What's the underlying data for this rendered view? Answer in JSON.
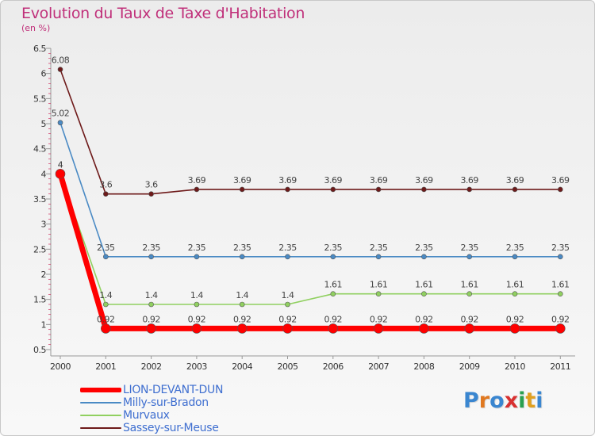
{
  "chart_data": {
    "type": "line",
    "title": "Evolution du Taux de Taxe d'Habitation",
    "subtitle": "(en %)",
    "x": [
      "2000",
      "2001",
      "2002",
      "2003",
      "2004",
      "2005",
      "2006",
      "2007",
      "2008",
      "2009",
      "2010",
      "2011"
    ],
    "yticks": [
      "0.5",
      "1",
      "1.5",
      "2",
      "2.5",
      "3",
      "3.5",
      "4",
      "4.5",
      "5",
      "5.5",
      "6",
      "6.5"
    ],
    "ylim": [
      0.5,
      6.5
    ],
    "grid": false,
    "legend_position": "bottom-left",
    "series": [
      {
        "name": "Sassey-sur-Meuse",
        "color": "#6e1a1a",
        "values": [
          6.08,
          3.6,
          3.6,
          3.69,
          3.69,
          3.69,
          3.69,
          3.69,
          3.69,
          3.69,
          3.69,
          3.69
        ],
        "labels": [
          "6.08",
          "3.6",
          "3.6",
          "3.69",
          "3.69",
          "3.69",
          "3.69",
          "3.69",
          "3.69",
          "3.69",
          "3.69",
          "3.69"
        ]
      },
      {
        "name": "Milly-sur-Bradon",
        "color": "#4a8ac4",
        "values": [
          5.02,
          2.35,
          2.35,
          2.35,
          2.35,
          2.35,
          2.35,
          2.35,
          2.35,
          2.35,
          2.35,
          2.35
        ],
        "labels": [
          "5.02",
          "2.35",
          "2.35",
          "2.35",
          "2.35",
          "2.35",
          "2.35",
          "2.35",
          "2.35",
          "2.35",
          "2.35",
          "2.35"
        ]
      },
      {
        "name": "Murvaux",
        "color": "#90d060",
        "values": [
          4,
          1.4,
          1.4,
          1.4,
          1.4,
          1.4,
          1.61,
          1.61,
          1.61,
          1.61,
          1.61,
          1.61
        ],
        "labels": [
          "4",
          "1.4",
          "1.4",
          "1.4",
          "1.4",
          "1.4",
          "1.61",
          "1.61",
          "1.61",
          "1.61",
          "1.61",
          "1.61"
        ]
      },
      {
        "name": "LION-DEVANT-DUN",
        "color": "#ff0000",
        "values": [
          4,
          0.92,
          0.92,
          0.92,
          0.92,
          0.92,
          0.92,
          0.92,
          0.92,
          0.92,
          0.92,
          0.92
        ],
        "labels": [
          "4",
          "0.92",
          "0.92",
          "0.92",
          "0.92",
          "0.92",
          "0.92",
          "0.92",
          "0.92",
          "0.92",
          "0.92",
          "0.92"
        ]
      }
    ]
  },
  "legend": {
    "items": [
      {
        "label": "LION-DEVANT-DUN",
        "color": "#ff0000"
      },
      {
        "label": "Milly-sur-Bradon",
        "color": "#4a8ac4"
      },
      {
        "label": "Murvaux",
        "color": "#90d060"
      },
      {
        "label": "Sassey-sur-Meuse",
        "color": "#6e1a1a"
      }
    ]
  },
  "logo": {
    "letters": [
      "P",
      "r",
      "o",
      "x",
      "i",
      "t",
      "i"
    ],
    "colors": [
      "#3a86d0",
      "#e07820",
      "#3a86d0",
      "#d83030",
      "#2aa050",
      "#e0a020",
      "#3a86d0"
    ]
  }
}
